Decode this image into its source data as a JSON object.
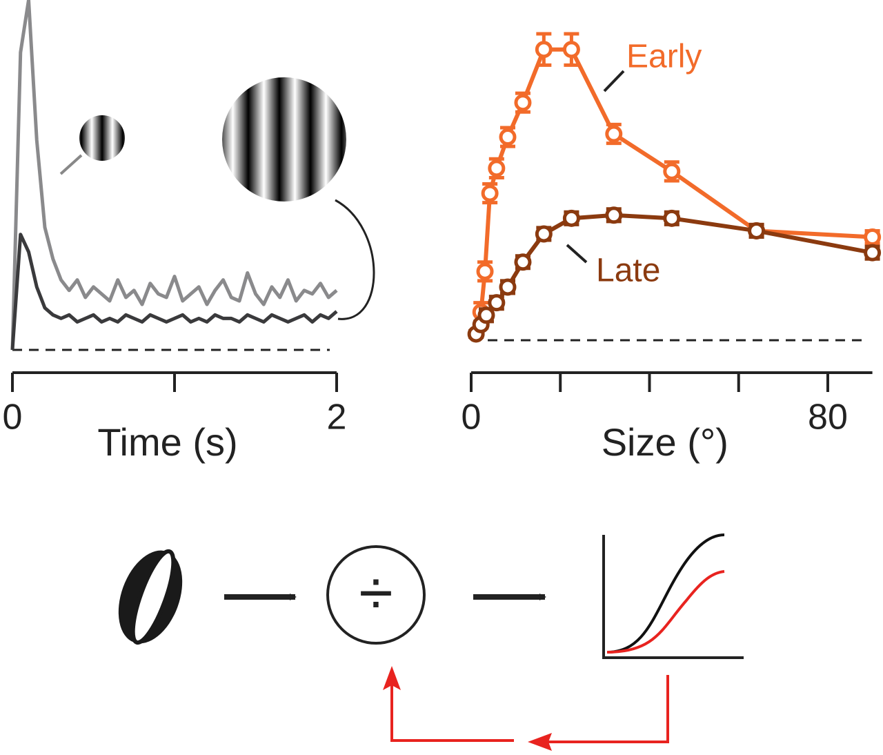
{
  "chart_data": [
    {
      "type": "line",
      "xlabel": "Time (s)",
      "xlim": [
        0,
        2
      ],
      "xticks": [
        0,
        2
      ],
      "x_minor_ticks": [
        1
      ],
      "ylim": [
        0,
        1
      ],
      "zero_line": true,
      "x": [
        0,
        0.05,
        0.1,
        0.15,
        0.2,
        0.25,
        0.3,
        0.35,
        0.4,
        0.45,
        0.5,
        0.55,
        0.6,
        0.65,
        0.7,
        0.75,
        0.8,
        0.85,
        0.9,
        0.95,
        1,
        1.05,
        1.1,
        1.15,
        1.2,
        1.25,
        1.3,
        1.35,
        1.4,
        1.45,
        1.5,
        1.55,
        1.6,
        1.65,
        1.7,
        1.75,
        1.8,
        1.85,
        1.9,
        1.95,
        2
      ],
      "series": [
        {
          "color": "#8a8a8c",
          "values": [
            0,
            0.85,
            1.0,
            0.6,
            0.35,
            0.26,
            0.2,
            0.17,
            0.2,
            0.15,
            0.18,
            0.16,
            0.14,
            0.2,
            0.15,
            0.17,
            0.13,
            0.19,
            0.16,
            0.15,
            0.21,
            0.14,
            0.16,
            0.18,
            0.13,
            0.17,
            0.2,
            0.15,
            0.14,
            0.22,
            0.16,
            0.13,
            0.18,
            0.15,
            0.2,
            0.14,
            0.17,
            0.16,
            0.19,
            0.15,
            0.17
          ]
        },
        {
          "color": "#3a3a3c",
          "values": [
            0,
            0.33,
            0.28,
            0.18,
            0.12,
            0.1,
            0.09,
            0.1,
            0.08,
            0.09,
            0.1,
            0.08,
            0.09,
            0.08,
            0.1,
            0.09,
            0.08,
            0.1,
            0.09,
            0.08,
            0.09,
            0.1,
            0.08,
            0.09,
            0.08,
            0.1,
            0.09,
            0.09,
            0.08,
            0.1,
            0.09,
            0.08,
            0.1,
            0.09,
            0.08,
            0.09,
            0.1,
            0.08,
            0.1,
            0.09,
            0.11
          ]
        }
      ]
    },
    {
      "type": "errorline",
      "xlabel": "Size (°)",
      "xlim": [
        0,
        90
      ],
      "xticks": [
        0,
        80
      ],
      "x_minor_ticks": [
        20,
        40,
        60
      ],
      "ylim": [
        0,
        1
      ],
      "zero_line": true,
      "series": [
        {
          "name": "Early",
          "color": "#f26b2a",
          "x": [
            2.2,
            3.1,
            4.2,
            5.7,
            8.2,
            11.6,
            16.3,
            22.5,
            32,
            45,
            64,
            90
          ],
          "values": [
            0.09,
            0.22,
            0.47,
            0.55,
            0.65,
            0.76,
            0.93,
            0.93,
            0.66,
            0.54,
            0.35,
            0.33
          ],
          "errors": [
            0.03,
            0.03,
            0.03,
            0.03,
            0.03,
            0.03,
            0.05,
            0.05,
            0.03,
            0.03,
            0.02,
            0.02
          ]
        },
        {
          "name": "Late",
          "color": "#8b3a0f",
          "x": [
            1.1,
            2.2,
            3.4,
            5.7,
            8.2,
            11.6,
            16.3,
            22.5,
            32,
            45,
            64,
            90
          ],
          "values": [
            0.02,
            0.05,
            0.08,
            0.12,
            0.17,
            0.25,
            0.34,
            0.39,
            0.4,
            0.39,
            0.35,
            0.28
          ],
          "errors": [
            0.01,
            0.01,
            0.02,
            0.02,
            0.02,
            0.02,
            0.02,
            0.02,
            0.02,
            0.02,
            0.02,
            0.02
          ]
        }
      ]
    }
  ],
  "diagram": {
    "operator": "÷"
  }
}
